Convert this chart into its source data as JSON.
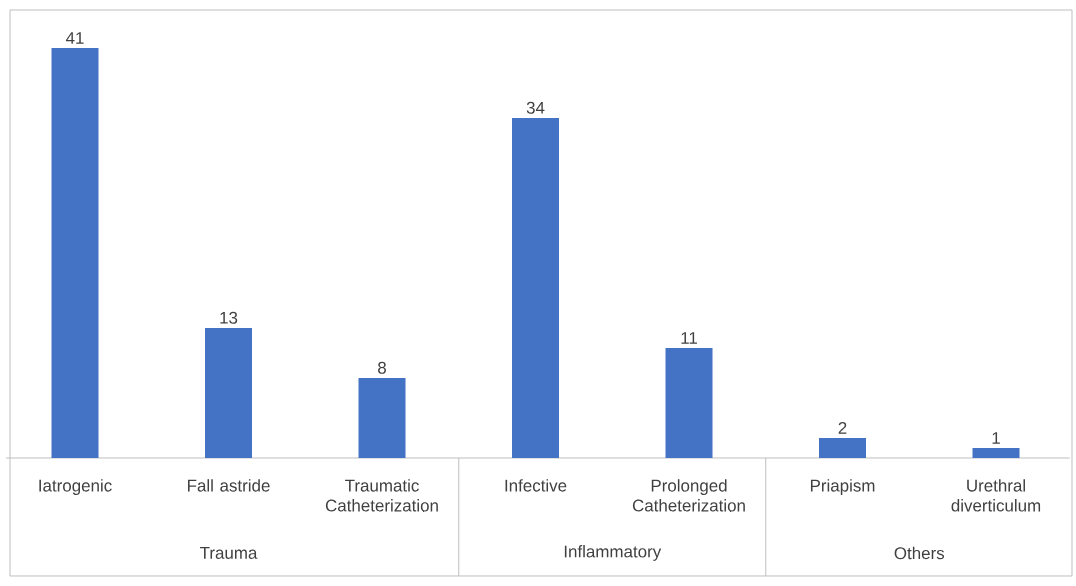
{
  "chart_data": {
    "type": "bar",
    "categories": [
      "Iatrogenic",
      "Fall astride",
      "Traumatic Catheterization",
      "Infective",
      "Prolonged Catheterization",
      "Priapism",
      "Urethral diverticulum"
    ],
    "values": [
      41,
      13,
      8,
      34,
      11,
      2,
      1
    ],
    "color": "#4472c4",
    "data_labels": true,
    "annotations": [
      "Trauma",
      "Inflammatory",
      "Others"
    ]
  }
}
